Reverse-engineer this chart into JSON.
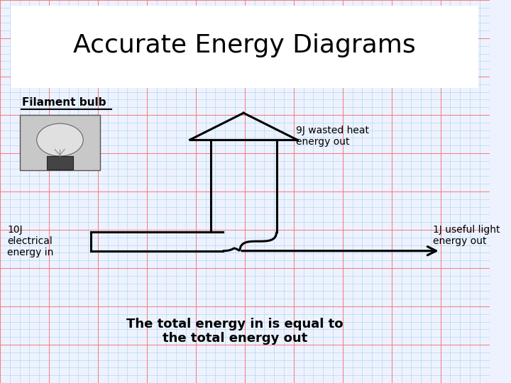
{
  "title": "Accurate Energy Diagrams",
  "subtitle_label": "Filament bulb",
  "label_10j": "10J\nelectrical\nenergy in",
  "label_9j": "9J wasted heat\nenergy out",
  "label_1j": "1J useful light\nenergy out",
  "bottom_text_line1": "The total energy in is equal to",
  "bottom_text_line2": "the total energy out",
  "bg_color": "#eef2ff",
  "grid_minor_color": "#a8d8ea",
  "grid_major_color": "#f08080",
  "title_bg": "#ffffff",
  "arrow_color": "#000000",
  "arrow_lw": 2.2
}
